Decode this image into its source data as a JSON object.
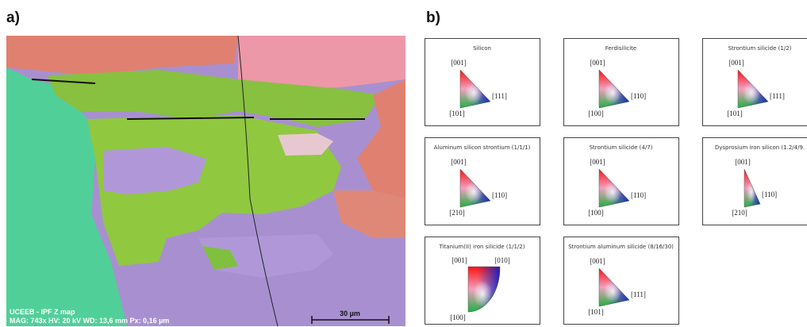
{
  "panel_a": {
    "label": "a)",
    "info_lines": [
      "UCEEB - IPF Z map",
      "MAG: 743x   HV: 20 kV   WD: 13,6 mm   Px: 0,16 µm"
    ],
    "scale_bar": "30 µm"
  },
  "panel_b": {
    "label": "b)",
    "legends": [
      {
        "title": "Silicon",
        "shape": "triangle",
        "corners": [
          "[001]",
          "[111]",
          "[101]"
        ]
      },
      {
        "title": "Ferdisilicite",
        "shape": "triangle",
        "corners": [
          "[001]",
          "[110]",
          "[100]"
        ]
      },
      {
        "title": "Strontium silicide (1/2)",
        "shape": "triangle",
        "corners": [
          "[001]",
          "[111]",
          "[101]"
        ]
      },
      {
        "title": "Aluminum silicon strontium (1/1/1)",
        "shape": "triangle",
        "corners": [
          "[001]",
          "[110]",
          "[210]"
        ]
      },
      {
        "title": "Strontium silicide (4/7)",
        "shape": "triangle",
        "corners": [
          "[001]",
          "[110]",
          "[100]"
        ]
      },
      {
        "title": "Dysprosium iron silicon (1.2/4/9.",
        "shape": "narrow-triangle",
        "corners": [
          "[001]",
          "[110]",
          "[210]"
        ]
      },
      {
        "title": "Titanium(II) iron silicide (1/1/2)",
        "shape": "quarter-disc",
        "corners": [
          "[001]",
          "[010]",
          "[100]"
        ]
      },
      {
        "title": "Strontium aluminum silicide (8/16/30)",
        "shape": "triangle",
        "corners": [
          "[001]",
          "[111]",
          "[101]"
        ]
      }
    ]
  }
}
